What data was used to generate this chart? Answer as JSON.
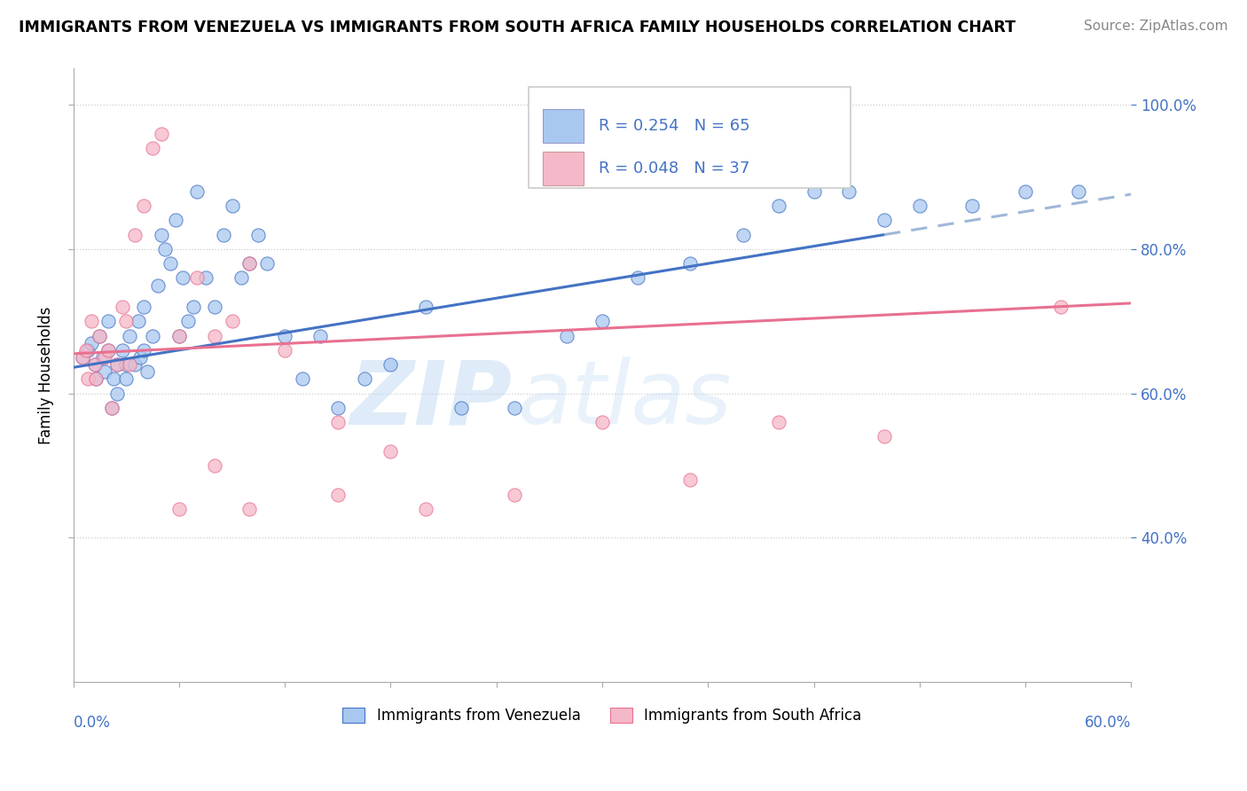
{
  "title": "IMMIGRANTS FROM VENEZUELA VS IMMIGRANTS FROM SOUTH AFRICA FAMILY HOUSEHOLDS CORRELATION CHART",
  "source": "Source: ZipAtlas.com",
  "ylabel": "Family Households",
  "watermark_zip": "ZIP",
  "watermark_atlas": "atlas",
  "legend_label_blue": "Immigrants from Venezuela",
  "legend_label_pink": "Immigrants from South Africa",
  "legend_r_blue": "R = 0.254",
  "legend_n_blue": "N = 65",
  "legend_r_pink": "R = 0.048",
  "legend_n_pink": "N = 37",
  "blue_color": "#A8C8F0",
  "pink_color": "#F5B8C8",
  "trend_blue": "#4472C4",
  "trend_pink": "#E87090",
  "trend_dashed_color": "#A0B8D8",
  "background_color": "#FFFFFF",
  "xlim": [
    0.0,
    0.6
  ],
  "ylim": [
    0.2,
    1.05
  ],
  "blue_x": [
    0.005,
    0.008,
    0.01,
    0.012,
    0.013,
    0.015,
    0.017,
    0.018,
    0.02,
    0.02,
    0.022,
    0.023,
    0.025,
    0.025,
    0.028,
    0.03,
    0.03,
    0.032,
    0.035,
    0.037,
    0.038,
    0.04,
    0.04,
    0.042,
    0.045,
    0.048,
    0.05,
    0.052,
    0.055,
    0.058,
    0.06,
    0.062,
    0.065,
    0.068,
    0.07,
    0.075,
    0.08,
    0.085,
    0.09,
    0.095,
    0.1,
    0.105,
    0.11,
    0.12,
    0.13,
    0.14,
    0.15,
    0.165,
    0.18,
    0.2,
    0.22,
    0.25,
    0.28,
    0.3,
    0.32,
    0.35,
    0.38,
    0.4,
    0.42,
    0.44,
    0.46,
    0.48,
    0.51,
    0.54,
    0.57
  ],
  "blue_y": [
    0.65,
    0.66,
    0.67,
    0.64,
    0.62,
    0.68,
    0.65,
    0.63,
    0.66,
    0.7,
    0.58,
    0.62,
    0.64,
    0.6,
    0.66,
    0.64,
    0.62,
    0.68,
    0.64,
    0.7,
    0.65,
    0.72,
    0.66,
    0.63,
    0.68,
    0.75,
    0.82,
    0.8,
    0.78,
    0.84,
    0.68,
    0.76,
    0.7,
    0.72,
    0.88,
    0.76,
    0.72,
    0.82,
    0.86,
    0.76,
    0.78,
    0.82,
    0.78,
    0.68,
    0.62,
    0.68,
    0.58,
    0.62,
    0.64,
    0.72,
    0.58,
    0.58,
    0.68,
    0.7,
    0.76,
    0.78,
    0.82,
    0.86,
    0.88,
    0.88,
    0.84,
    0.86,
    0.86,
    0.88,
    0.88
  ],
  "pink_x": [
    0.005,
    0.007,
    0.008,
    0.01,
    0.012,
    0.013,
    0.015,
    0.018,
    0.02,
    0.022,
    0.025,
    0.028,
    0.03,
    0.032,
    0.035,
    0.04,
    0.045,
    0.05,
    0.06,
    0.07,
    0.08,
    0.09,
    0.1,
    0.12,
    0.15,
    0.18,
    0.06,
    0.08,
    0.1,
    0.15,
    0.2,
    0.25,
    0.3,
    0.35,
    0.4,
    0.46,
    0.56
  ],
  "pink_y": [
    0.65,
    0.66,
    0.62,
    0.7,
    0.64,
    0.62,
    0.68,
    0.65,
    0.66,
    0.58,
    0.64,
    0.72,
    0.7,
    0.64,
    0.82,
    0.86,
    0.94,
    0.96,
    0.68,
    0.76,
    0.68,
    0.7,
    0.78,
    0.66,
    0.56,
    0.52,
    0.44,
    0.5,
    0.44,
    0.46,
    0.44,
    0.46,
    0.56,
    0.48,
    0.56,
    0.54,
    0.72
  ],
  "trend_blue_x0": 0.0,
  "trend_blue_y0": 0.636,
  "trend_blue_x1": 0.46,
  "trend_blue_y1": 0.82,
  "trend_dashed_x0": 0.46,
  "trend_dashed_y0": 0.82,
  "trend_dashed_x1": 0.6,
  "trend_dashed_y1": 0.876,
  "trend_pink_x0": 0.0,
  "trend_pink_y0": 0.655,
  "trend_pink_x1": 0.6,
  "trend_pink_y1": 0.725
}
